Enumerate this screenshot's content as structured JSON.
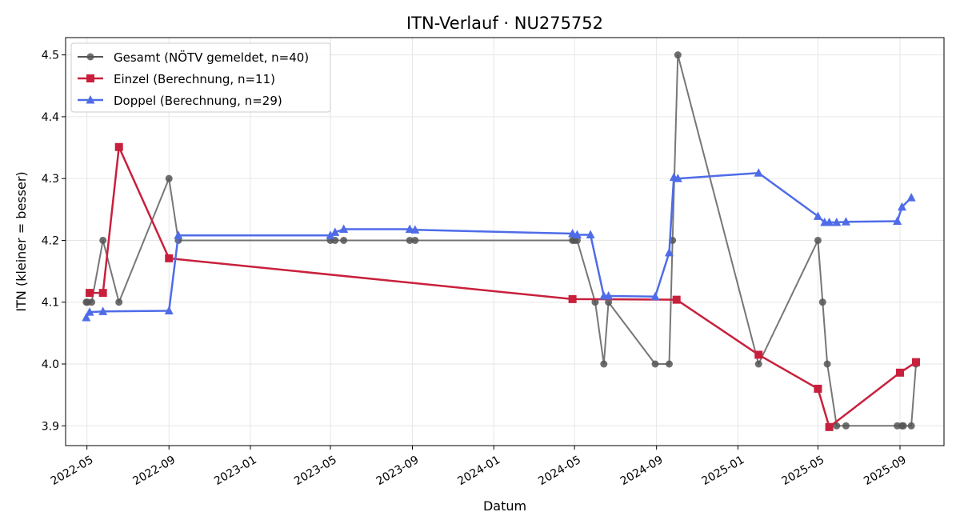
{
  "chart_data": {
    "type": "line",
    "title": "ITN-Verlauf · NU275752",
    "xlabel": "Datum",
    "ylabel": "ITN  (kleiner = besser)",
    "xlim": [
      "2022-03-30",
      "2025-11-06"
    ],
    "ylim": [
      3.868,
      4.528
    ],
    "x_ticks": [
      "2022-05",
      "2022-09",
      "2023-01",
      "2023-05",
      "2023-09",
      "2024-01",
      "2024-05",
      "2024-09",
      "2025-01",
      "2025-05",
      "2025-09"
    ],
    "y_ticks": [
      "3.9",
      "4.0",
      "4.1",
      "4.2",
      "4.3",
      "4.4",
      "4.5"
    ],
    "grid": true,
    "legend_position": "top-left",
    "series": [
      {
        "name": "Gesamt (NÖTV gemeldet, n=40)",
        "color": "#555555",
        "marker": "circle",
        "points": [
          [
            "2022-04-30",
            4.1
          ],
          [
            "2022-05-02",
            4.1
          ],
          [
            "2022-05-08",
            4.1
          ],
          [
            "2022-05-25",
            4.2
          ],
          [
            "2022-06-18",
            4.1
          ],
          [
            "2022-09-01",
            4.3
          ],
          [
            "2022-09-15",
            4.2
          ],
          [
            "2023-05-01",
            4.2
          ],
          [
            "2023-05-08",
            4.2
          ],
          [
            "2023-05-21",
            4.2
          ],
          [
            "2023-08-28",
            4.2
          ],
          [
            "2023-09-05",
            4.2
          ],
          [
            "2024-04-28",
            4.2
          ],
          [
            "2024-05-01",
            4.2
          ],
          [
            "2024-05-05",
            4.2
          ],
          [
            "2024-06-01",
            4.1
          ],
          [
            "2024-06-14",
            4.0
          ],
          [
            "2024-06-21",
            4.1
          ],
          [
            "2024-08-30",
            4.0
          ],
          [
            "2024-09-20",
            4.0
          ],
          [
            "2024-09-25",
            4.2
          ],
          [
            "2024-10-03",
            4.5
          ],
          [
            "2025-02-01",
            4.0
          ],
          [
            "2025-05-01",
            4.2
          ],
          [
            "2025-05-08",
            4.1
          ],
          [
            "2025-05-15",
            4.0
          ],
          [
            "2025-05-29",
            3.9
          ],
          [
            "2025-06-12",
            3.9
          ],
          [
            "2025-08-28",
            3.9
          ],
          [
            "2025-09-04",
            3.9
          ],
          [
            "2025-09-06",
            3.9
          ],
          [
            "2025-09-18",
            3.9
          ],
          [
            "2025-09-25",
            4.0
          ]
        ]
      },
      {
        "name": "Einzel (Berechnung, n=11)",
        "color": "#c8203c",
        "marker": "square",
        "points": [
          [
            "2022-05-05",
            4.115
          ],
          [
            "2022-05-25",
            4.115
          ],
          [
            "2022-06-18",
            4.351
          ],
          [
            "2022-09-01",
            4.171
          ],
          [
            "2024-04-28",
            4.105
          ],
          [
            "2024-10-01",
            4.104
          ],
          [
            "2025-02-01",
            4.015
          ],
          [
            "2025-05-01",
            3.96
          ],
          [
            "2025-05-18",
            3.898
          ],
          [
            "2025-09-01",
            3.986
          ],
          [
            "2025-09-25",
            4.003
          ]
        ]
      },
      {
        "name": "Doppel (Berechnung, n=29)",
        "color": "#4f6ce8",
        "marker": "triangle",
        "points": [
          [
            "2022-04-30",
            4.075
          ],
          [
            "2022-05-05",
            4.084
          ],
          [
            "2022-05-25",
            4.085
          ],
          [
            "2022-09-01",
            4.086
          ],
          [
            "2022-09-15",
            4.208
          ],
          [
            "2023-05-01",
            4.208
          ],
          [
            "2023-05-08",
            4.213
          ],
          [
            "2023-05-21",
            4.218
          ],
          [
            "2023-08-28",
            4.218
          ],
          [
            "2023-09-05",
            4.217
          ],
          [
            "2024-04-28",
            4.211
          ],
          [
            "2024-05-05",
            4.209
          ],
          [
            "2024-05-25",
            4.209
          ],
          [
            "2024-06-14",
            4.11
          ],
          [
            "2024-06-21",
            4.11
          ],
          [
            "2024-08-30",
            4.109
          ],
          [
            "2024-09-20",
            4.18
          ],
          [
            "2024-09-27",
            4.302
          ],
          [
            "2024-10-03",
            4.3
          ],
          [
            "2025-02-01",
            4.309
          ],
          [
            "2025-05-01",
            4.239
          ],
          [
            "2025-05-11",
            4.229
          ],
          [
            "2025-05-18",
            4.229
          ],
          [
            "2025-05-29",
            4.229
          ],
          [
            "2025-06-12",
            4.23
          ],
          [
            "2025-08-28",
            4.231
          ],
          [
            "2025-09-04",
            4.254
          ],
          [
            "2025-09-18",
            4.269
          ]
        ]
      }
    ]
  }
}
